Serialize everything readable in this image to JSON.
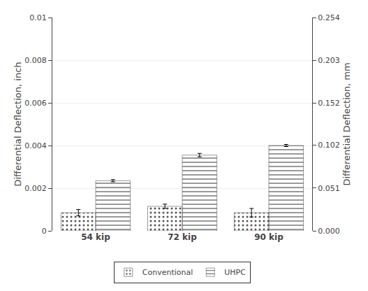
{
  "chart_data": {
    "type": "bar",
    "categories": [
      "54 kip",
      "72 kip",
      "90 kip"
    ],
    "series": [
      {
        "name": "Conventional",
        "color": "#92C5E0",
        "values": [
          0.00085,
          0.00115,
          0.00085
        ],
        "errors": [
          0.00015,
          0.0001,
          0.0002
        ]
      },
      {
        "name": "UHPC",
        "color": "#E84040",
        "values": [
          0.00235,
          0.00355,
          0.004
        ],
        "errors": [
          5e-05,
          8e-05,
          5e-05
        ]
      }
    ],
    "ylabel": "Differential Deflection, inch",
    "y2label": "Differential Deflection, mm",
    "ylim": [
      0,
      0.01
    ],
    "yticks": [
      0,
      0.002,
      0.004,
      0.006,
      0.008,
      0.01
    ],
    "y2lim": [
      0,
      0.254
    ],
    "y2ticks": [
      {
        "value": 0,
        "label": "0.000"
      },
      0.051,
      0.102,
      0.152,
      0.203,
      0.254
    ],
    "grid": true,
    "legend": "bottom"
  }
}
